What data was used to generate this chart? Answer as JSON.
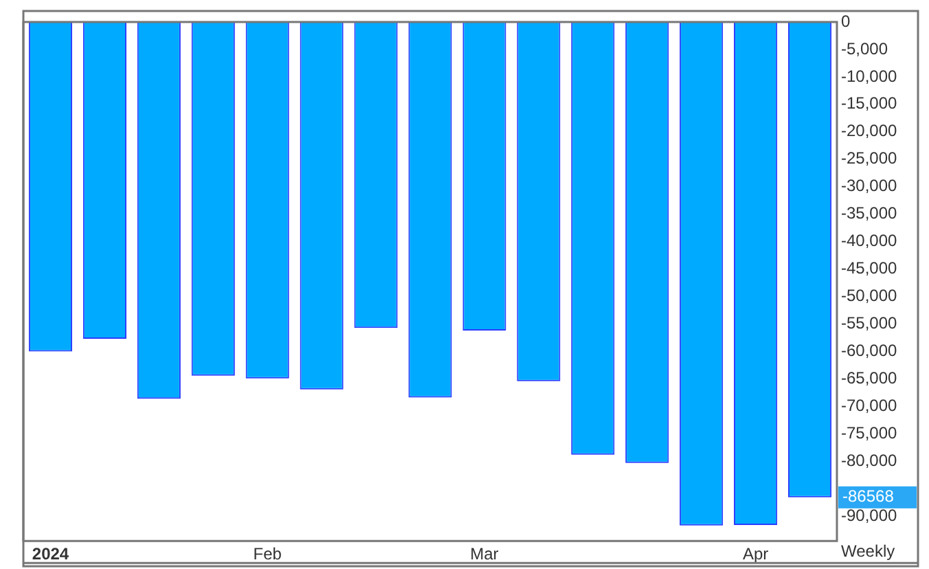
{
  "chart_data": {
    "type": "bar",
    "categories": [
      "2024",
      null,
      null,
      null,
      "Feb",
      null,
      null,
      null,
      "Mar",
      null,
      null,
      null,
      null,
      "Apr",
      null
    ],
    "series": [
      {
        "color": "#00aaff",
        "values": [
          -60000,
          -57700,
          -68600,
          -64400,
          -64900,
          -66900,
          -55700,
          -68400,
          -56200,
          -65400,
          -78800,
          -80300,
          -91700,
          -91600,
          -86568
        ]
      }
    ],
    "ylim": [
      -94500,
      0
    ],
    "yticks": [
      0,
      {
        "value": -5000,
        "label": "-5,000"
      },
      {
        "value": -10000,
        "label": "-10,000"
      },
      {
        "value": -15000,
        "label": "-15,000"
      },
      {
        "value": -20000,
        "label": "-20,000"
      },
      {
        "value": -25000,
        "label": "-25,000"
      },
      {
        "value": -30000,
        "label": "-30,000"
      },
      {
        "value": -35000,
        "label": "-35,000"
      },
      {
        "value": -40000,
        "label": "-40,000"
      },
      {
        "value": -45000,
        "label": "-45,000"
      },
      {
        "value": -50000,
        "label": "-50,000"
      },
      {
        "value": -55000,
        "label": "-55,000"
      },
      {
        "value": -60000,
        "label": "-60,000"
      },
      {
        "value": -65000,
        "label": "-65,000"
      },
      {
        "value": -70000,
        "label": "-70,000"
      },
      {
        "value": -75000,
        "label": "-75,000"
      },
      {
        "value": -80000,
        "label": "-80,000"
      },
      {
        "value": -90000,
        "label": "-90,000"
      }
    ],
    "annotations": [
      "-86568",
      "Weekly"
    ],
    "grid": false,
    "legend": false
  }
}
